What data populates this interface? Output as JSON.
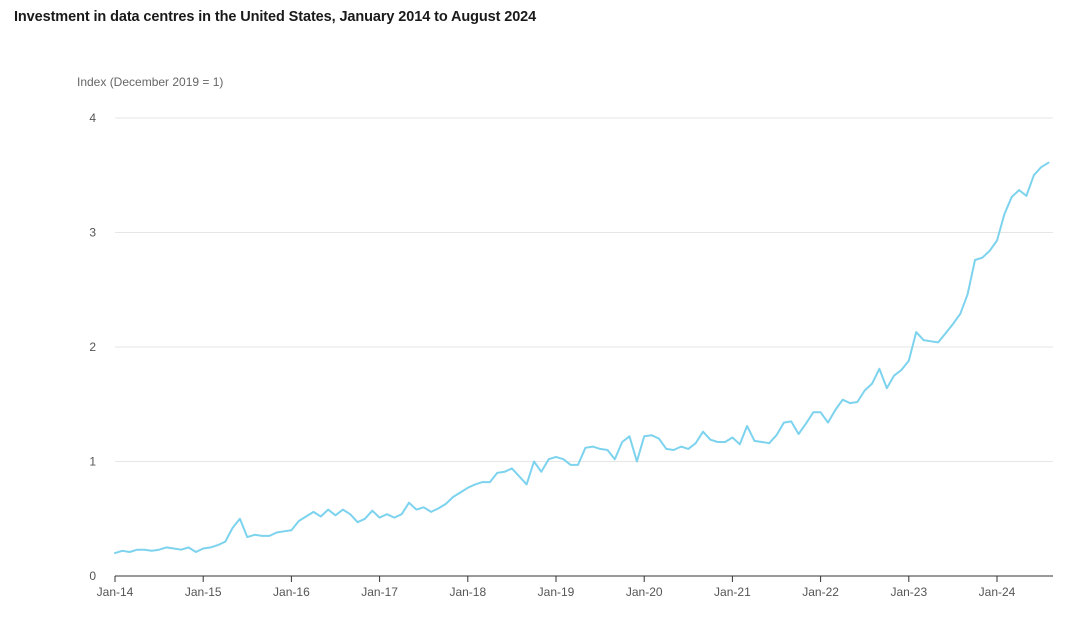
{
  "chart_data": {
    "type": "line",
    "title": "Investment in data centres in the United States, January 2014 to August 2024",
    "ylabel": "Index (December 2019 = 1)",
    "xlabel": "",
    "ylim": [
      0,
      4
    ],
    "yticks": [
      "0",
      "1",
      "2",
      "3",
      "4"
    ],
    "xticks": [
      "Jan-14",
      "Jan-15",
      "Jan-16",
      "Jan-17",
      "Jan-18",
      "Jan-19",
      "Jan-20",
      "Jan-21",
      "Jan-22",
      "Jan-23",
      "Jan-24"
    ],
    "grid": true,
    "color": "#7dd3ee",
    "series": [
      {
        "start": "2014-01",
        "values": [
          0.2,
          0.22,
          0.21,
          0.23,
          0.23,
          0.22,
          0.23,
          0.25,
          0.24,
          0.23,
          0.25,
          0.21,
          0.24,
          0.25,
          0.27,
          0.3,
          0.42,
          0.5,
          0.34,
          0.36,
          0.35,
          0.35,
          0.38,
          0.39,
          0.4,
          0.48,
          0.52,
          0.56,
          0.52,
          0.58,
          0.53,
          0.58,
          0.54,
          0.47,
          0.5,
          0.57,
          0.51,
          0.54,
          0.51,
          0.54,
          0.64,
          0.58,
          0.6,
          0.56,
          0.59,
          0.63,
          0.69,
          0.73,
          0.77,
          0.8,
          0.82,
          0.82,
          0.9,
          0.91,
          0.94,
          0.87,
          0.8,
          1.0,
          0.91,
          1.02,
          1.04,
          1.02,
          0.97,
          0.97,
          1.12,
          1.13,
          1.11,
          1.1,
          1.02,
          1.17,
          1.22,
          1.0,
          1.22,
          1.23,
          1.2,
          1.11,
          1.1,
          1.13,
          1.11,
          1.16,
          1.26,
          1.19,
          1.17,
          1.17,
          1.21,
          1.15,
          1.31,
          1.18,
          1.17,
          1.16,
          1.23,
          1.34,
          1.35,
          1.24,
          1.33,
          1.43,
          1.43,
          1.34,
          1.45,
          1.54,
          1.51,
          1.52,
          1.62,
          1.68,
          1.81,
          1.64,
          1.75,
          1.8,
          1.88,
          2.13,
          2.06,
          2.05,
          2.04,
          2.12,
          2.2,
          2.29,
          2.46,
          2.76,
          2.78,
          2.84,
          2.93,
          3.16,
          3.31,
          3.37,
          3.32,
          3.5,
          3.57,
          3.61
        ]
      }
    ]
  }
}
